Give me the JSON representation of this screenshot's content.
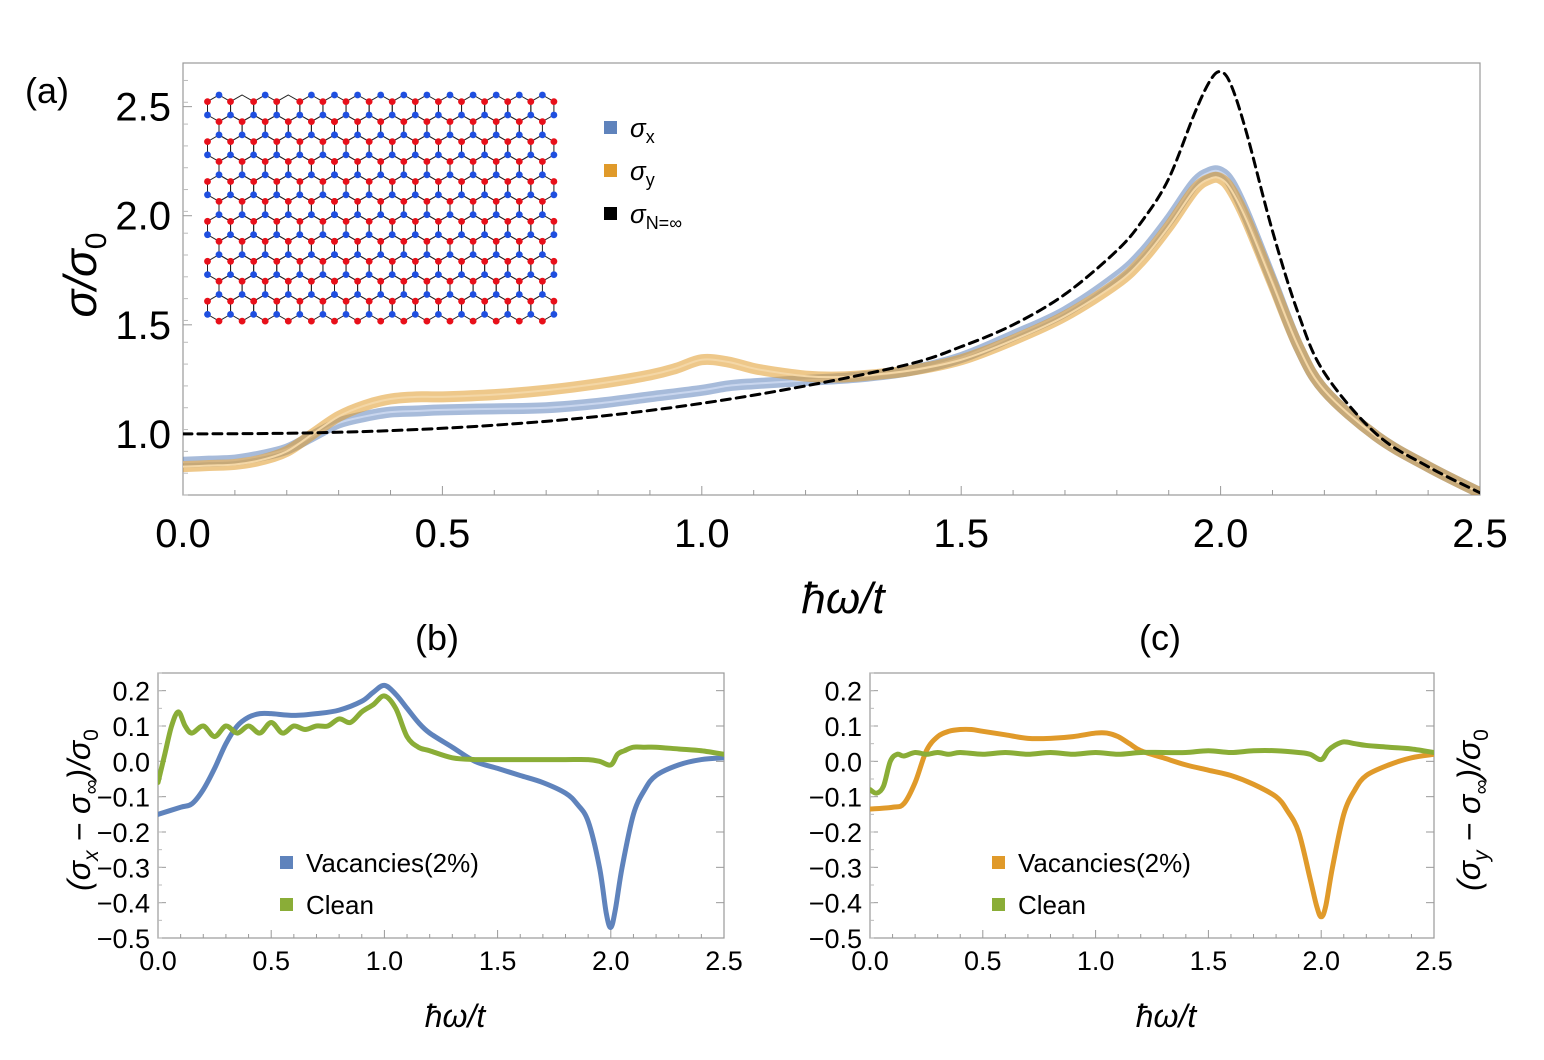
{
  "panels": {
    "a": {
      "label": "(a)",
      "xlabel": "ħω/t",
      "ylabel": "σ/σ₀",
      "ylabel_main": "σ/σ",
      "ylabel_sub": "0",
      "xticks": [
        "0.0",
        "0.5",
        "1.0",
        "1.5",
        "2.0",
        "2.5"
      ],
      "yticks": [
        "1.0",
        "1.5",
        "2.0",
        "2.5"
      ],
      "legend": [
        {
          "name": "σx",
          "main": "σ",
          "sub": "x",
          "color": "#5f83bc"
        },
        {
          "name": "σy",
          "main": "σ",
          "sub": "y",
          "color": "#e09a2a"
        },
        {
          "name": "σN=∞",
          "main": "σ",
          "sub": "N=∞",
          "color": "#000000"
        }
      ]
    },
    "b": {
      "label": "(b)",
      "xlabel": "ħω/t",
      "ylabel": "(σx − σ∞)/σ0",
      "ylabel_parts": [
        "(σ",
        "x",
        " − σ",
        "∞",
        ")/σ",
        "0"
      ],
      "xticks": [
        "0.0",
        "0.5",
        "1.0",
        "1.5",
        "2.0",
        "2.5"
      ],
      "yticks": [
        "0.2",
        "0.1",
        "0.0",
        "−0.1",
        "−0.2",
        "−0.3",
        "−0.4",
        "−0.5"
      ],
      "legend": [
        {
          "name": "Vacancies(2%)",
          "color": "#5f83bc"
        },
        {
          "name": "Clean",
          "color": "#8aad37"
        }
      ]
    },
    "c": {
      "label": "(c)",
      "xlabel": "ħω/t",
      "ylabel": "(σy − σ∞)/σ0",
      "ylabel_parts": [
        "(σ",
        "y",
        " − σ",
        "∞",
        ")/σ",
        "0"
      ],
      "xticks": [
        "0.0",
        "0.5",
        "1.0",
        "1.5",
        "2.0",
        "2.5"
      ],
      "yticks": [
        "0.2",
        "0.1",
        "0.0",
        "−0.1",
        "−0.2",
        "−0.3",
        "−0.4",
        "−0.5"
      ],
      "legend": [
        {
          "name": "Vacancies(2%)",
          "color": "#e09a2a"
        },
        {
          "name": "Clean",
          "color": "#8aad37"
        }
      ]
    }
  },
  "colors": {
    "blue": "#5f83bc",
    "orange": "#e09a2a",
    "green": "#8aad37",
    "site_red": "#e8101a",
    "site_blue": "#1f4fe0"
  },
  "chart_data": [
    {
      "type": "line",
      "panel": "a",
      "xlim": [
        0,
        2.5
      ],
      "ylim": [
        0.72,
        2.7
      ],
      "grid": false,
      "legend_position": "top-center",
      "series": [
        {
          "name": "σx",
          "x": [
            0.0,
            0.05,
            0.1,
            0.15,
            0.2,
            0.25,
            0.3,
            0.35,
            0.4,
            0.45,
            0.5,
            0.6,
            0.7,
            0.8,
            0.9,
            1.0,
            1.05,
            1.1,
            1.2,
            1.3,
            1.4,
            1.5,
            1.6,
            1.7,
            1.8,
            1.85,
            1.9,
            1.95,
            1.98,
            2.0,
            2.02,
            2.05,
            2.1,
            2.15,
            2.2,
            2.3,
            2.4,
            2.5
          ],
          "y": [
            0.87,
            0.875,
            0.88,
            0.9,
            0.93,
            0.99,
            1.05,
            1.08,
            1.1,
            1.105,
            1.11,
            1.115,
            1.12,
            1.14,
            1.17,
            1.2,
            1.22,
            1.23,
            1.245,
            1.26,
            1.29,
            1.35,
            1.45,
            1.56,
            1.72,
            1.83,
            1.98,
            2.15,
            2.2,
            2.2,
            2.15,
            2.0,
            1.7,
            1.4,
            1.2,
            0.99,
            0.85,
            0.73
          ]
        },
        {
          "name": "σy",
          "x": [
            0.0,
            0.05,
            0.1,
            0.15,
            0.2,
            0.25,
            0.3,
            0.35,
            0.4,
            0.45,
            0.5,
            0.6,
            0.7,
            0.8,
            0.9,
            0.95,
            1.0,
            1.05,
            1.1,
            1.15,
            1.2,
            1.25,
            1.3,
            1.4,
            1.5,
            1.6,
            1.7,
            1.8,
            1.85,
            1.9,
            1.95,
            1.98,
            2.0,
            2.02,
            2.05,
            2.1,
            2.15,
            2.2,
            2.3,
            2.4,
            2.5
          ],
          "y": [
            0.85,
            0.855,
            0.86,
            0.88,
            0.92,
            1.0,
            1.08,
            1.13,
            1.16,
            1.17,
            1.17,
            1.18,
            1.2,
            1.23,
            1.27,
            1.3,
            1.34,
            1.33,
            1.3,
            1.28,
            1.265,
            1.26,
            1.265,
            1.29,
            1.34,
            1.43,
            1.54,
            1.69,
            1.8,
            1.95,
            2.12,
            2.17,
            2.17,
            2.12,
            1.98,
            1.69,
            1.4,
            1.2,
            0.99,
            0.85,
            0.73
          ]
        },
        {
          "name": "σN=∞",
          "x": [
            0.0,
            0.2,
            0.4,
            0.6,
            0.8,
            1.0,
            1.2,
            1.4,
            1.5,
            1.6,
            1.7,
            1.8,
            1.85,
            1.9,
            1.95,
            1.98,
            2.0,
            2.02,
            2.05,
            2.1,
            2.15,
            2.2,
            2.3,
            2.4,
            2.5
          ],
          "y": [
            1.0,
            1.003,
            1.015,
            1.04,
            1.08,
            1.14,
            1.22,
            1.32,
            1.4,
            1.5,
            1.64,
            1.84,
            1.98,
            2.17,
            2.47,
            2.62,
            2.66,
            2.6,
            2.38,
            1.93,
            1.55,
            1.28,
            1.0,
            0.85,
            0.73
          ]
        }
      ]
    },
    {
      "type": "line",
      "panel": "b",
      "xlabel": "ħω/t",
      "ylabel": "(σx − σ∞)/σ0",
      "xlim": [
        0,
        2.5
      ],
      "ylim": [
        -0.5,
        0.25
      ],
      "legend_position": "bottom-center",
      "series": [
        {
          "name": "Vacancies(2%)",
          "x": [
            0.0,
            0.1,
            0.15,
            0.2,
            0.25,
            0.3,
            0.35,
            0.4,
            0.45,
            0.5,
            0.6,
            0.7,
            0.8,
            0.9,
            0.95,
            1.0,
            1.05,
            1.1,
            1.15,
            1.2,
            1.3,
            1.4,
            1.5,
            1.6,
            1.7,
            1.8,
            1.85,
            1.9,
            1.95,
            1.98,
            2.0,
            2.02,
            2.05,
            2.1,
            2.15,
            2.2,
            2.3,
            2.4,
            2.5
          ],
          "y": [
            -0.15,
            -0.13,
            -0.12,
            -0.08,
            -0.02,
            0.05,
            0.1,
            0.125,
            0.135,
            0.135,
            0.13,
            0.135,
            0.145,
            0.17,
            0.195,
            0.215,
            0.19,
            0.15,
            0.11,
            0.08,
            0.04,
            0.0,
            -0.02,
            -0.04,
            -0.06,
            -0.09,
            -0.12,
            -0.17,
            -0.3,
            -0.43,
            -0.47,
            -0.42,
            -0.3,
            -0.15,
            -0.08,
            -0.04,
            -0.01,
            0.005,
            0.01
          ]
        },
        {
          "name": "Clean",
          "x": [
            0.0,
            0.03,
            0.06,
            0.09,
            0.12,
            0.15,
            0.2,
            0.25,
            0.3,
            0.35,
            0.4,
            0.45,
            0.5,
            0.55,
            0.6,
            0.65,
            0.7,
            0.75,
            0.8,
            0.85,
            0.9,
            0.95,
            1.0,
            1.05,
            1.1,
            1.15,
            1.2,
            1.3,
            1.4,
            1.5,
            1.6,
            1.7,
            1.8,
            1.9,
            1.95,
            2.0,
            2.03,
            2.06,
            2.1,
            2.15,
            2.2,
            2.3,
            2.4,
            2.5
          ],
          "y": [
            -0.06,
            0.02,
            0.1,
            0.14,
            0.1,
            0.08,
            0.1,
            0.07,
            0.1,
            0.08,
            0.1,
            0.08,
            0.11,
            0.08,
            0.1,
            0.09,
            0.1,
            0.1,
            0.12,
            0.11,
            0.14,
            0.16,
            0.185,
            0.15,
            0.07,
            0.04,
            0.03,
            0.01,
            0.005,
            0.005,
            0.005,
            0.005,
            0.005,
            0.005,
            0.0,
            -0.01,
            0.02,
            0.03,
            0.04,
            0.04,
            0.04,
            0.035,
            0.03,
            0.02
          ]
        }
      ]
    },
    {
      "type": "line",
      "panel": "c",
      "xlabel": "ħω/t",
      "ylabel": "(σy − σ∞)/σ0",
      "xlim": [
        0,
        2.5
      ],
      "ylim": [
        -0.5,
        0.25
      ],
      "legend_position": "bottom-center",
      "series": [
        {
          "name": "Vacancies(2%)",
          "x": [
            0.0,
            0.1,
            0.15,
            0.2,
            0.25,
            0.3,
            0.35,
            0.4,
            0.45,
            0.5,
            0.6,
            0.7,
            0.8,
            0.9,
            1.0,
            1.05,
            1.1,
            1.15,
            1.2,
            1.3,
            1.4,
            1.5,
            1.6,
            1.7,
            1.8,
            1.85,
            1.9,
            1.95,
            1.98,
            2.0,
            2.02,
            2.05,
            2.1,
            2.15,
            2.2,
            2.3,
            2.4,
            2.5
          ],
          "y": [
            -0.135,
            -0.13,
            -0.12,
            -0.06,
            0.03,
            0.07,
            0.085,
            0.09,
            0.09,
            0.085,
            0.075,
            0.065,
            0.065,
            0.07,
            0.08,
            0.08,
            0.07,
            0.05,
            0.03,
            0.01,
            -0.01,
            -0.025,
            -0.04,
            -0.065,
            -0.1,
            -0.14,
            -0.2,
            -0.33,
            -0.41,
            -0.44,
            -0.41,
            -0.3,
            -0.15,
            -0.08,
            -0.04,
            -0.01,
            0.01,
            0.02
          ]
        },
        {
          "name": "Clean",
          "x": [
            0.0,
            0.03,
            0.06,
            0.09,
            0.12,
            0.15,
            0.2,
            0.25,
            0.3,
            0.35,
            0.4,
            0.5,
            0.6,
            0.7,
            0.8,
            0.9,
            1.0,
            1.1,
            1.2,
            1.3,
            1.4,
            1.5,
            1.6,
            1.7,
            1.8,
            1.9,
            1.95,
            2.0,
            2.03,
            2.06,
            2.1,
            2.15,
            2.2,
            2.3,
            2.4,
            2.5
          ],
          "y": [
            -0.08,
            -0.09,
            -0.07,
            0.0,
            0.02,
            0.015,
            0.025,
            0.02,
            0.025,
            0.02,
            0.025,
            0.02,
            0.025,
            0.02,
            0.025,
            0.02,
            0.025,
            0.02,
            0.025,
            0.025,
            0.025,
            0.03,
            0.025,
            0.03,
            0.03,
            0.025,
            0.02,
            0.005,
            0.03,
            0.045,
            0.055,
            0.05,
            0.045,
            0.04,
            0.035,
            0.025
          ]
        }
      ]
    }
  ]
}
